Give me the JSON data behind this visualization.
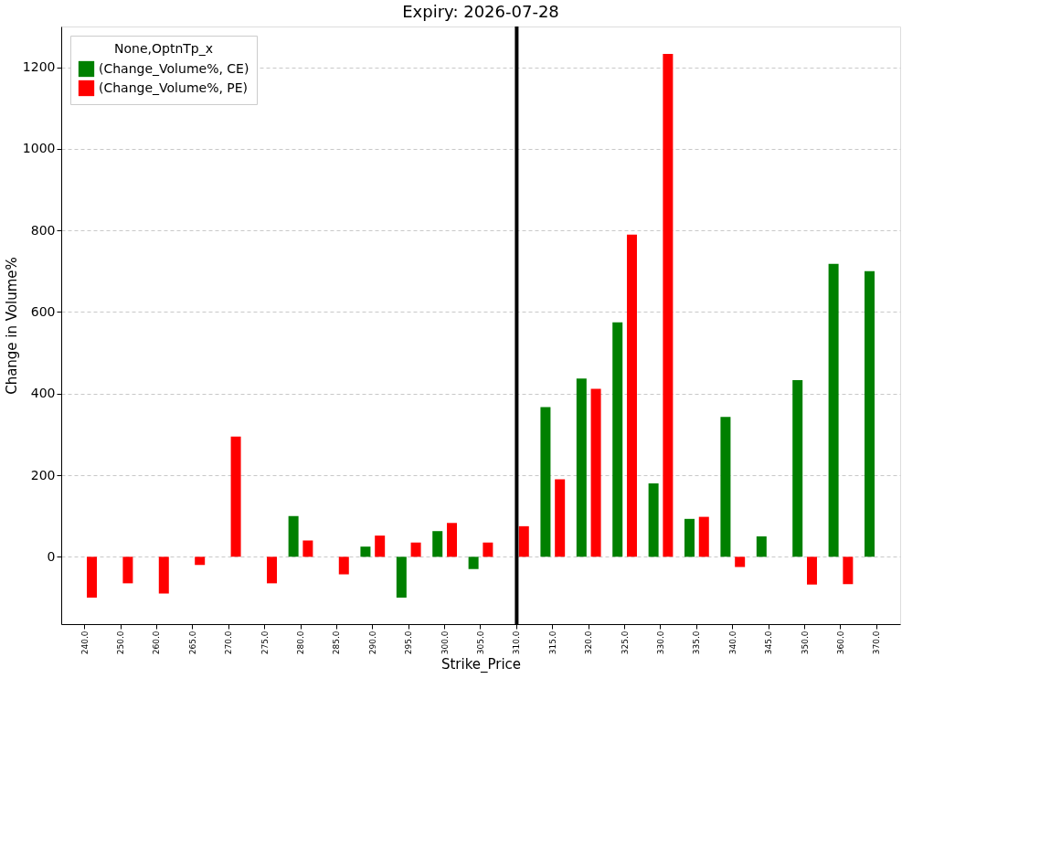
{
  "chart_data": {
    "type": "bar",
    "title": "Expiry: 2026-07-28",
    "xlabel": "Strike_Price",
    "ylabel": "Change in Volume%",
    "legend_title": "None,OptnTp_x",
    "categories": [
      "240.0",
      "250.0",
      "260.0",
      "265.0",
      "270.0",
      "275.0",
      "280.0",
      "285.0",
      "290.0",
      "295.0",
      "300.0",
      "305.0",
      "310.0",
      "315.0",
      "320.0",
      "325.0",
      "330.0",
      "335.0",
      "340.0",
      "345.0",
      "350.0",
      "360.0",
      "370.0"
    ],
    "series": [
      {
        "name": "(Change_Volume%, CE)",
        "color": "#008000",
        "values": [
          null,
          null,
          null,
          null,
          null,
          null,
          100,
          null,
          25,
          -100,
          63,
          -30,
          null,
          367,
          437,
          575,
          180,
          93,
          343,
          50,
          433,
          718,
          700
        ]
      },
      {
        "name": "(Change_Volume%, PE)",
        "color": "#ff0000",
        "values": [
          -100,
          -65,
          -90,
          -20,
          295,
          -65,
          40,
          -43,
          52,
          35,
          83,
          35,
          75,
          190,
          412,
          790,
          1233,
          98,
          -25,
          null,
          -68,
          -67,
          null
        ]
      }
    ],
    "ylim": [
      -165,
      1300
    ],
    "yticks": [
      0,
      200,
      400,
      600,
      800,
      1000,
      1200
    ],
    "grid": "y",
    "legend": "top left",
    "ref_lines": [
      {
        "axis": "x",
        "value": "310.0",
        "color": "#000000"
      }
    ]
  }
}
